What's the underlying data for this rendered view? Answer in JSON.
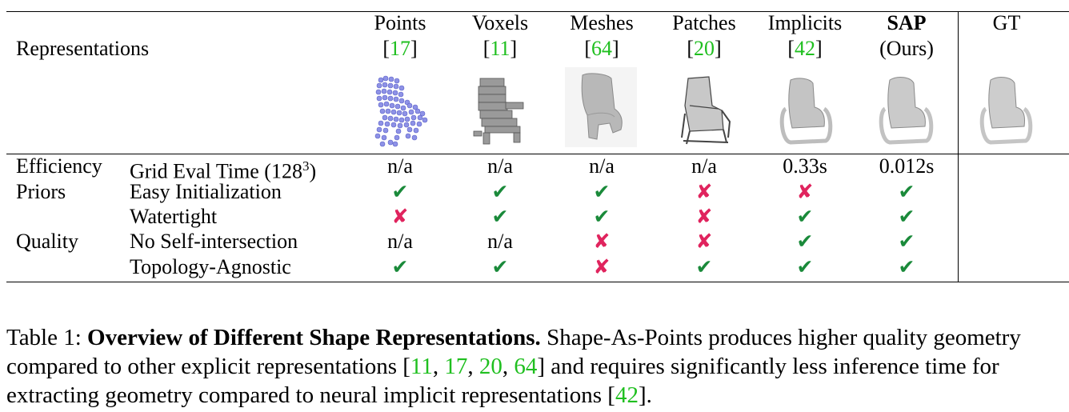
{
  "header": {
    "row_label": "Representations",
    "columns": [
      {
        "name": "Points",
        "ref": "[17]",
        "ref_num": "17"
      },
      {
        "name": "Voxels",
        "ref": "[11]",
        "ref_num": "11"
      },
      {
        "name": "Meshes",
        "ref": "[64]",
        "ref_num": "64"
      },
      {
        "name": "Patches",
        "ref": "[20]",
        "ref_num": "20"
      },
      {
        "name": "Implicits",
        "ref": "[42]",
        "ref_num": "42"
      },
      {
        "name": "SAP",
        "ref": "(Ours)"
      }
    ],
    "gt": "GT"
  },
  "rows": [
    {
      "category": "Efficiency",
      "property": "Grid Eval Time (128",
      "superscript": "3",
      "property_end": ")",
      "values": [
        "n/a",
        "n/a",
        "n/a",
        "n/a",
        "0.33s",
        "0.012s"
      ]
    },
    {
      "category": "Priors",
      "property": "Easy Initialization",
      "values": [
        "yes",
        "yes",
        "yes",
        "no",
        "no",
        "yes"
      ]
    },
    {
      "category": "",
      "property": "Watertight",
      "values": [
        "no",
        "yes",
        "yes",
        "no",
        "yes",
        "yes"
      ]
    },
    {
      "category": "Quality",
      "property": "No Self-intersection",
      "values": [
        "n/a",
        "n/a",
        "no",
        "no",
        "yes",
        "yes"
      ]
    },
    {
      "category": "",
      "property": "Topology-Agnostic",
      "values": [
        "yes",
        "yes",
        "no",
        "yes",
        "yes",
        "yes"
      ]
    }
  ],
  "marks": {
    "yes": "✔",
    "no": "✘"
  },
  "colors": {
    "citation": "#1fbf1f",
    "yes": "#1a8a3a",
    "no": "#e0245e"
  },
  "caption": {
    "label": "Table 1: ",
    "title": "Overview of Different Shape Representations.",
    "text1": " Shape-As-Points produces higher quality geometry compared to other explicit representations [",
    "refs": [
      "11",
      "17",
      "20",
      "64"
    ],
    "text2": "] and requires significantly less inference time for extracting geometry compared to neural implicit representations [",
    "ref_last": "42",
    "text3": "]."
  }
}
